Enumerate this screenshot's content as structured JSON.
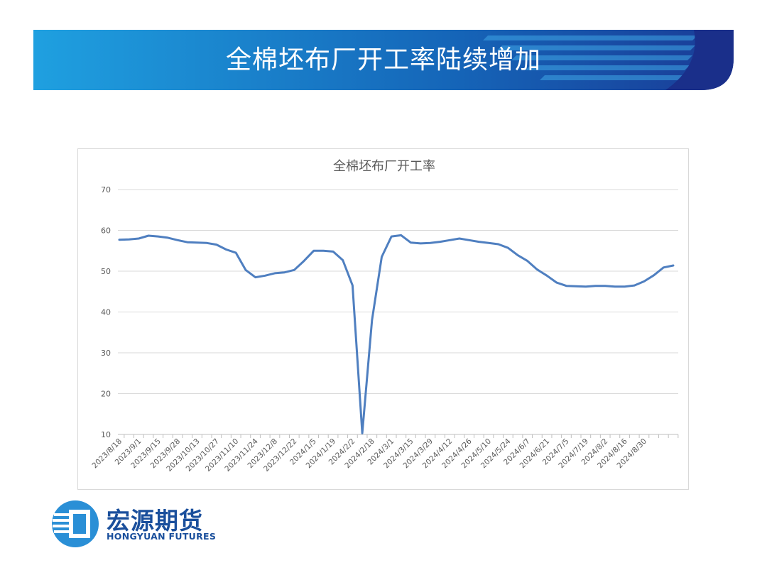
{
  "banner": {
    "title": "全棉坯布厂开工率陆续增加"
  },
  "brand": {
    "name_cn": "宏源期货",
    "name_en": "HONGYUAN FUTURES",
    "color": "#1a4f9c"
  },
  "colors": {
    "banner_left": "#1fa0e0",
    "banner_right": "#1a3b96",
    "line": "#4f7fc0",
    "grid": "#d9d9d9"
  },
  "chart_data": {
    "type": "line",
    "title": "全棉坯布厂开工率",
    "xlabel": "",
    "ylabel": "",
    "ylim": [
      10,
      70
    ],
    "yticks": [
      10,
      20,
      30,
      40,
      50,
      60,
      70
    ],
    "grid": true,
    "legend": "none",
    "x_tick_labels": [
      "2023/8/18",
      "2023/9/1",
      "2023/9/15",
      "2023/9/28",
      "2023/10/13",
      "2023/10/27",
      "2023/11/10",
      "2023/11/24",
      "2023/12/8",
      "2023/12/22",
      "2024/1/5",
      "2024/1/19",
      "2024/2/2",
      "2024/2/18",
      "2024/3/1",
      "2024/3/15",
      "2024/3/29",
      "2024/4/12",
      "2024/4/26",
      "2024/5/10",
      "2024/5/24",
      "2024/6/7",
      "2024/6/21",
      "2024/7/5",
      "2024/7/19",
      "2024/8/2",
      "2024/8/16",
      "2024/8/30"
    ],
    "series": [
      {
        "values": [
          57.7,
          57.8,
          58.0,
          58.7,
          58.5,
          58.2,
          57.6,
          57.1,
          57.0,
          56.9,
          56.5,
          55.3,
          54.5,
          50.3,
          48.5,
          48.9,
          49.5,
          49.7,
          50.3,
          52.5,
          55.0,
          55.0,
          54.8,
          52.7,
          46.5,
          10.3,
          38.0,
          53.5,
          58.5,
          58.8,
          57.0,
          56.8,
          56.9,
          57.2,
          57.6,
          58.0,
          57.6,
          57.2,
          56.9,
          56.6,
          55.7,
          53.9,
          52.5,
          50.4,
          48.9,
          47.2,
          46.4,
          46.3,
          46.2,
          46.4,
          46.4,
          46.2,
          46.2,
          46.5,
          47.5,
          49.0,
          50.9,
          51.4
        ]
      }
    ]
  }
}
